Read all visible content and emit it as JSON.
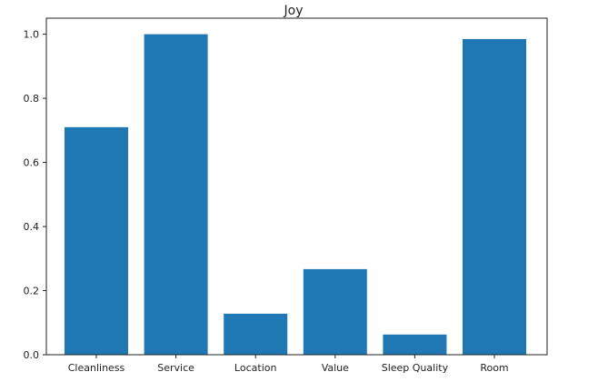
{
  "chart_data": {
    "type": "bar",
    "title": "Joy",
    "xlabel": "",
    "ylabel": "",
    "categories": [
      "Cleanliness",
      "Service",
      "Location",
      "Value",
      "Sleep Quality",
      "Room"
    ],
    "values": [
      0.71,
      1.0,
      0.128,
      0.267,
      0.063,
      0.985
    ],
    "ylim": [
      0,
      1.05
    ],
    "yticks": [
      0.0,
      0.2,
      0.4,
      0.6,
      0.8,
      1.0
    ],
    "ytick_labels": [
      "0.0",
      "0.2",
      "0.4",
      "0.6",
      "0.8",
      "1.0"
    ],
    "bar_color": "#1f77b4",
    "grid": false,
    "legend": "none"
  }
}
